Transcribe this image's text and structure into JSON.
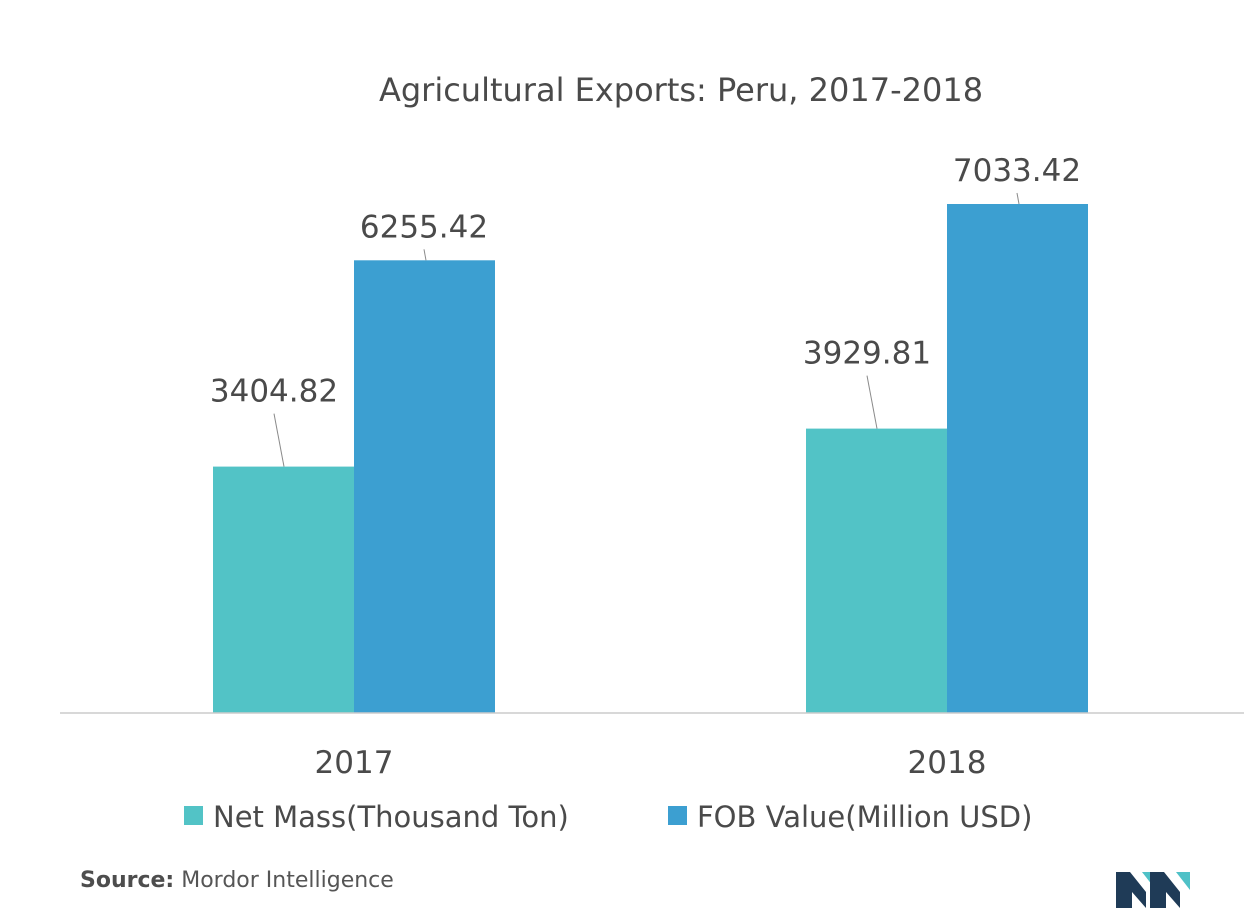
{
  "chart_data": {
    "type": "bar",
    "title": "Agricultural Exports: Peru, 2017-2018",
    "xlabel": "",
    "ylabel": "",
    "categories": [
      "2017",
      "2018"
    ],
    "series": [
      {
        "name": "Net Mass(Thousand Ton)",
        "values": [
          3404.82,
          3929.81
        ],
        "color": "#52c3c6"
      },
      {
        "name": "FOB Value(Million USD)",
        "values": [
          6255.42,
          7033.42
        ],
        "color": "#3c9fd1"
      }
    ],
    "data_labels": [
      [
        "3404.82",
        "3929.81"
      ],
      [
        "6255.42",
        "7033.42"
      ]
    ],
    "ylim": [
      0,
      7033.42
    ],
    "grid": false,
    "legend_position": "bottom"
  },
  "source": {
    "label": "Source:",
    "text": "Mordor Intelligence"
  },
  "colors": {
    "axis": "#cccccc",
    "leader": "#8a8a8a",
    "text": "#4a4a4a",
    "logo_dark": "#1f3b57",
    "logo_light": "#4fc1c7"
  },
  "logo": {
    "icon": "mordor-intelligence-logo"
  }
}
